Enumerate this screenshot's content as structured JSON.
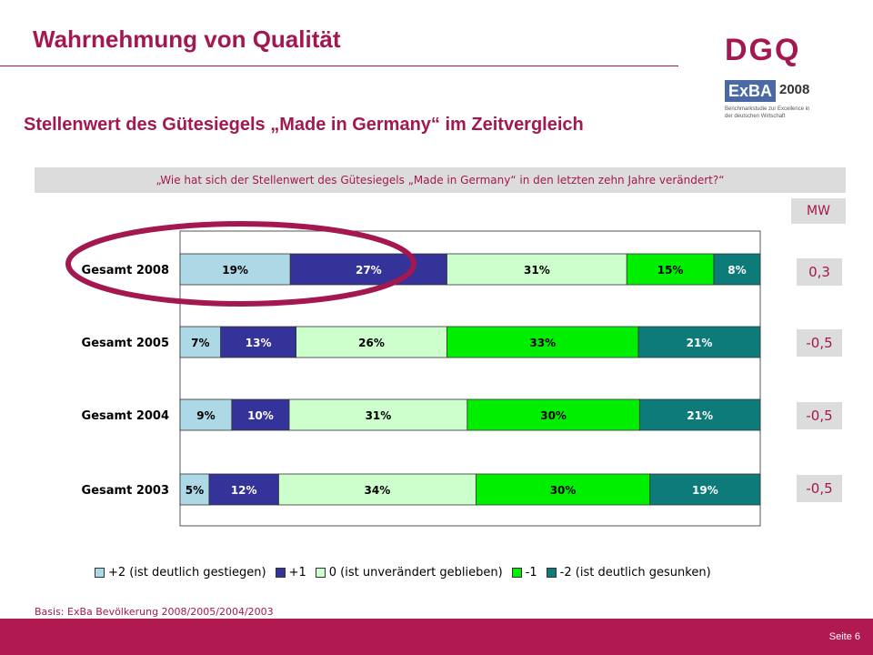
{
  "header": {
    "title": "Wahrnehmung von Qualität",
    "logo": "DGQ",
    "exba_logo": "ExBA",
    "exba_year": "2008",
    "exba_caption": "Benchmarkstudie zur Excellence in der deutschen Wirtschaft"
  },
  "subtitle": "Stellenwert des Gütesiegels „Made in Germany“ im Zeitvergleich",
  "question": "„Wie hat sich der Stellenwert des Gütesiegels „Made in Germany“ in den letzten zehn Jahre verändert?“",
  "mw": {
    "header": "MW",
    "values": [
      "0,3",
      "-0,5",
      "-0,5",
      "-0,5"
    ]
  },
  "chart_data": {
    "type": "bar",
    "orientation": "horizontal",
    "stacked": true,
    "percent": true,
    "categories": [
      "Gesamt 2008",
      "Gesamt 2005",
      "Gesamt 2004",
      "Gesamt 2003"
    ],
    "series": [
      {
        "name": "+2 (ist deutlich gestiegen)",
        "color": "#add8e6",
        "values": [
          19,
          7,
          9,
          5
        ]
      },
      {
        "name": "+1",
        "color": "#333399",
        "values": [
          27,
          13,
          10,
          12
        ]
      },
      {
        "name": "0 (ist unverändert geblieben)",
        "color": "#ccffcc",
        "values": [
          31,
          26,
          31,
          34
        ]
      },
      {
        "name": "-1",
        "color": "#00ee00",
        "values": [
          15,
          33,
          30,
          30
        ]
      },
      {
        "name": "-2 (ist deutlich gesunken)",
        "color": "#0e7b7b",
        "values": [
          8,
          21,
          21,
          19
        ]
      }
    ],
    "legend_position": "bottom",
    "highlight": "Gesamt 2008"
  },
  "basis": "Basis: ExBa Bevölkerung 2008/2005/2004/2003",
  "footer": {
    "page": "Seite 6"
  }
}
